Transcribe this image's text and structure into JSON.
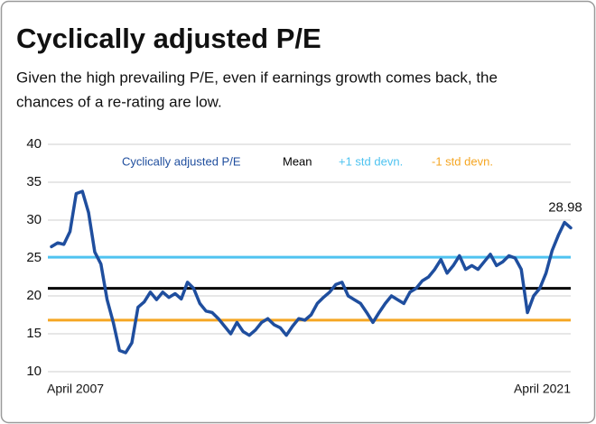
{
  "chart_data": {
    "type": "line",
    "title": "Cyclically adjusted P/E",
    "subtitle": [
      "Given the high prevailing P/E, even if earnings growth comes back, the",
      "chances of a re-rating are low."
    ],
    "categories": [
      "April 2007",
      null,
      null,
      null,
      null,
      null,
      null,
      null,
      null,
      null,
      null,
      null,
      null,
      null,
      null,
      null,
      null,
      null,
      null,
      null,
      null,
      null,
      null,
      null,
      null,
      null,
      null,
      null,
      null,
      null,
      null,
      null,
      null,
      null,
      null,
      null,
      null,
      null,
      null,
      null,
      null,
      null,
      null,
      null,
      null,
      null,
      null,
      null,
      null,
      null,
      null,
      null,
      null,
      null,
      null,
      null,
      null,
      null,
      null,
      null,
      null,
      null,
      null,
      null,
      null,
      null,
      null,
      null,
      null,
      null,
      null,
      null,
      null,
      null,
      null,
      null,
      null,
      null,
      null,
      null,
      null,
      null,
      null,
      null,
      "April 2021"
    ],
    "series": [
      {
        "name": "Cyclically adjusted P/E",
        "color": "#1f4e9e",
        "values": [
          26.5,
          27.0,
          26.8,
          28.5,
          33.5,
          33.8,
          31.0,
          25.8,
          24.2,
          19.5,
          16.5,
          12.8,
          12.5,
          13.8,
          18.5,
          19.2,
          20.5,
          19.5,
          20.5,
          19.8,
          20.3,
          19.6,
          21.8,
          21.0,
          19.0,
          18.0,
          17.8,
          17.0,
          16.0,
          15.0,
          16.5,
          15.3,
          14.8,
          15.5,
          16.5,
          17.0,
          16.2,
          15.8,
          14.8,
          16.0,
          17.0,
          16.8,
          17.5,
          19.0,
          19.8,
          20.5,
          21.5,
          21.8,
          20.0,
          19.5,
          19.0,
          17.8,
          16.5,
          17.8,
          19.0,
          20.0,
          19.5,
          19.0,
          20.5,
          21.0,
          22.0,
          22.5,
          23.5,
          24.8,
          23.0,
          24.0,
          25.3,
          23.5,
          24.0,
          23.5,
          24.5,
          25.5,
          24.0,
          24.5,
          25.3,
          25.0,
          23.5,
          17.8,
          20.0,
          21.0,
          23.0,
          26.0,
          28.0,
          29.7,
          28.98
        ]
      }
    ],
    "reference_lines": [
      {
        "name": "Mean",
        "color": "#000000",
        "value": 21
      },
      {
        "name": "+1 std devn.",
        "color": "#4fc3f0",
        "value": 25.1
      },
      {
        "name": "-1 std devn.",
        "color": "#f5a623",
        "value": 16.8
      }
    ],
    "data_labels": "last",
    "ylim": [
      10,
      40
    ],
    "yticks": [
      10,
      15,
      20,
      25,
      30,
      35,
      40
    ],
    "grid": true
  }
}
